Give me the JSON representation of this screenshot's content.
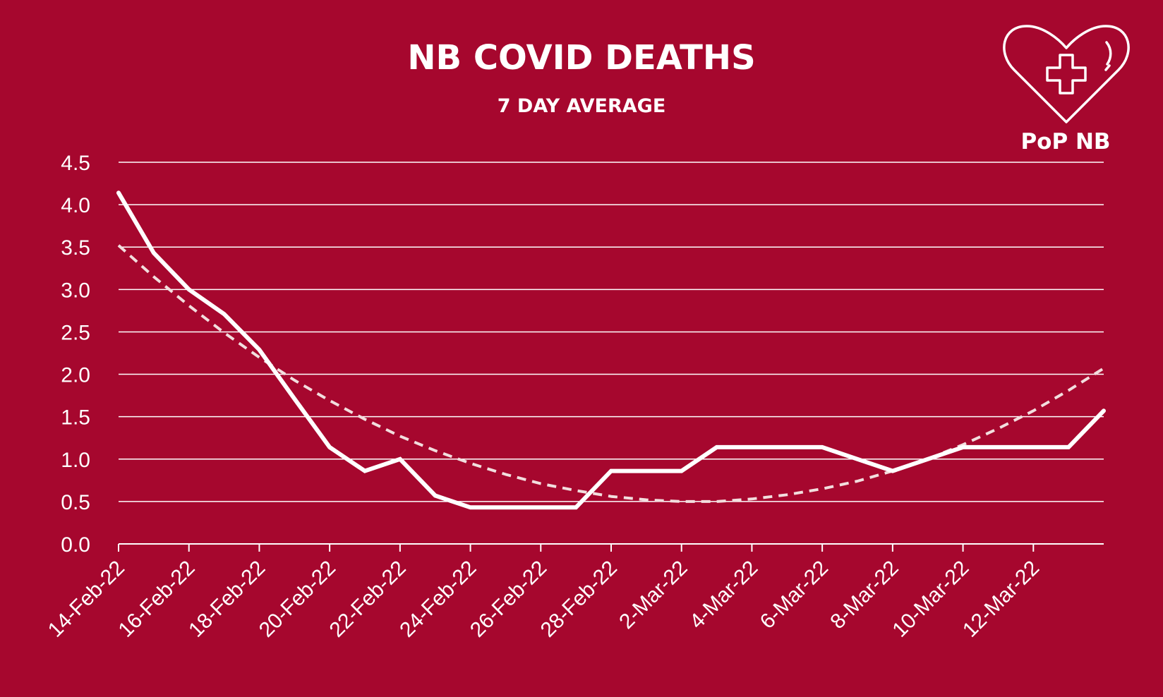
{
  "chart_data": {
    "type": "line",
    "title": "NB COVID DEATHS",
    "subtitle": "7 DAY AVERAGE",
    "xlabel": "",
    "ylabel": "",
    "ylim": [
      0,
      4.5
    ],
    "yticks": [
      "0.0",
      "0.5",
      "1.0",
      "1.5",
      "2.0",
      "2.5",
      "3.0",
      "3.5",
      "4.0",
      "4.5"
    ],
    "x": [
      "14-Feb-22",
      "15-Feb-22",
      "16-Feb-22",
      "17-Feb-22",
      "18-Feb-22",
      "19-Feb-22",
      "20-Feb-22",
      "21-Feb-22",
      "22-Feb-22",
      "23-Feb-22",
      "24-Feb-22",
      "25-Feb-22",
      "26-Feb-22",
      "27-Feb-22",
      "28-Feb-22",
      "1-Mar-22",
      "2-Mar-22",
      "3-Mar-22",
      "4-Mar-22",
      "5-Mar-22",
      "6-Mar-22",
      "7-Mar-22",
      "8-Mar-22",
      "9-Mar-22",
      "10-Mar-22",
      "11-Mar-22",
      "12-Mar-22",
      "13-Mar-22",
      "14-Mar-22"
    ],
    "xtick_labels": [
      "14-Feb-22",
      "16-Feb-22",
      "18-Feb-22",
      "20-Feb-22",
      "22-Feb-22",
      "24-Feb-22",
      "26-Feb-22",
      "28-Feb-22",
      "2-Mar-22",
      "4-Mar-22",
      "6-Mar-22",
      "8-Mar-22",
      "10-Mar-22",
      "12-Mar-22"
    ],
    "series": [
      {
        "style": "solid",
        "values": [
          4.14,
          3.43,
          3.0,
          2.71,
          2.29,
          1.71,
          1.14,
          0.86,
          1.0,
          0.57,
          0.43,
          0.43,
          0.43,
          0.43,
          0.86,
          0.86,
          0.86,
          1.14,
          1.14,
          1.14,
          1.14,
          1.0,
          0.86,
          1.0,
          1.14,
          1.14,
          1.14,
          1.14,
          1.57
        ]
      },
      {
        "style": "dashed",
        "values": [
          3.52,
          3.15,
          2.81,
          2.49,
          2.2,
          1.93,
          1.69,
          1.47,
          1.27,
          1.1,
          0.95,
          0.82,
          0.71,
          0.63,
          0.56,
          0.52,
          0.5,
          0.5,
          0.53,
          0.58,
          0.65,
          0.74,
          0.86,
          1.0,
          1.17,
          1.36,
          1.57,
          1.81,
          2.07
        ]
      }
    ],
    "grid": true,
    "legend": "none"
  },
  "logo": {
    "text": "PoP NB",
    "icon": "heart-cross-icon"
  },
  "colors": {
    "background": "#a6072e",
    "foreground": "#ffffff",
    "trend": "#f2dede"
  }
}
